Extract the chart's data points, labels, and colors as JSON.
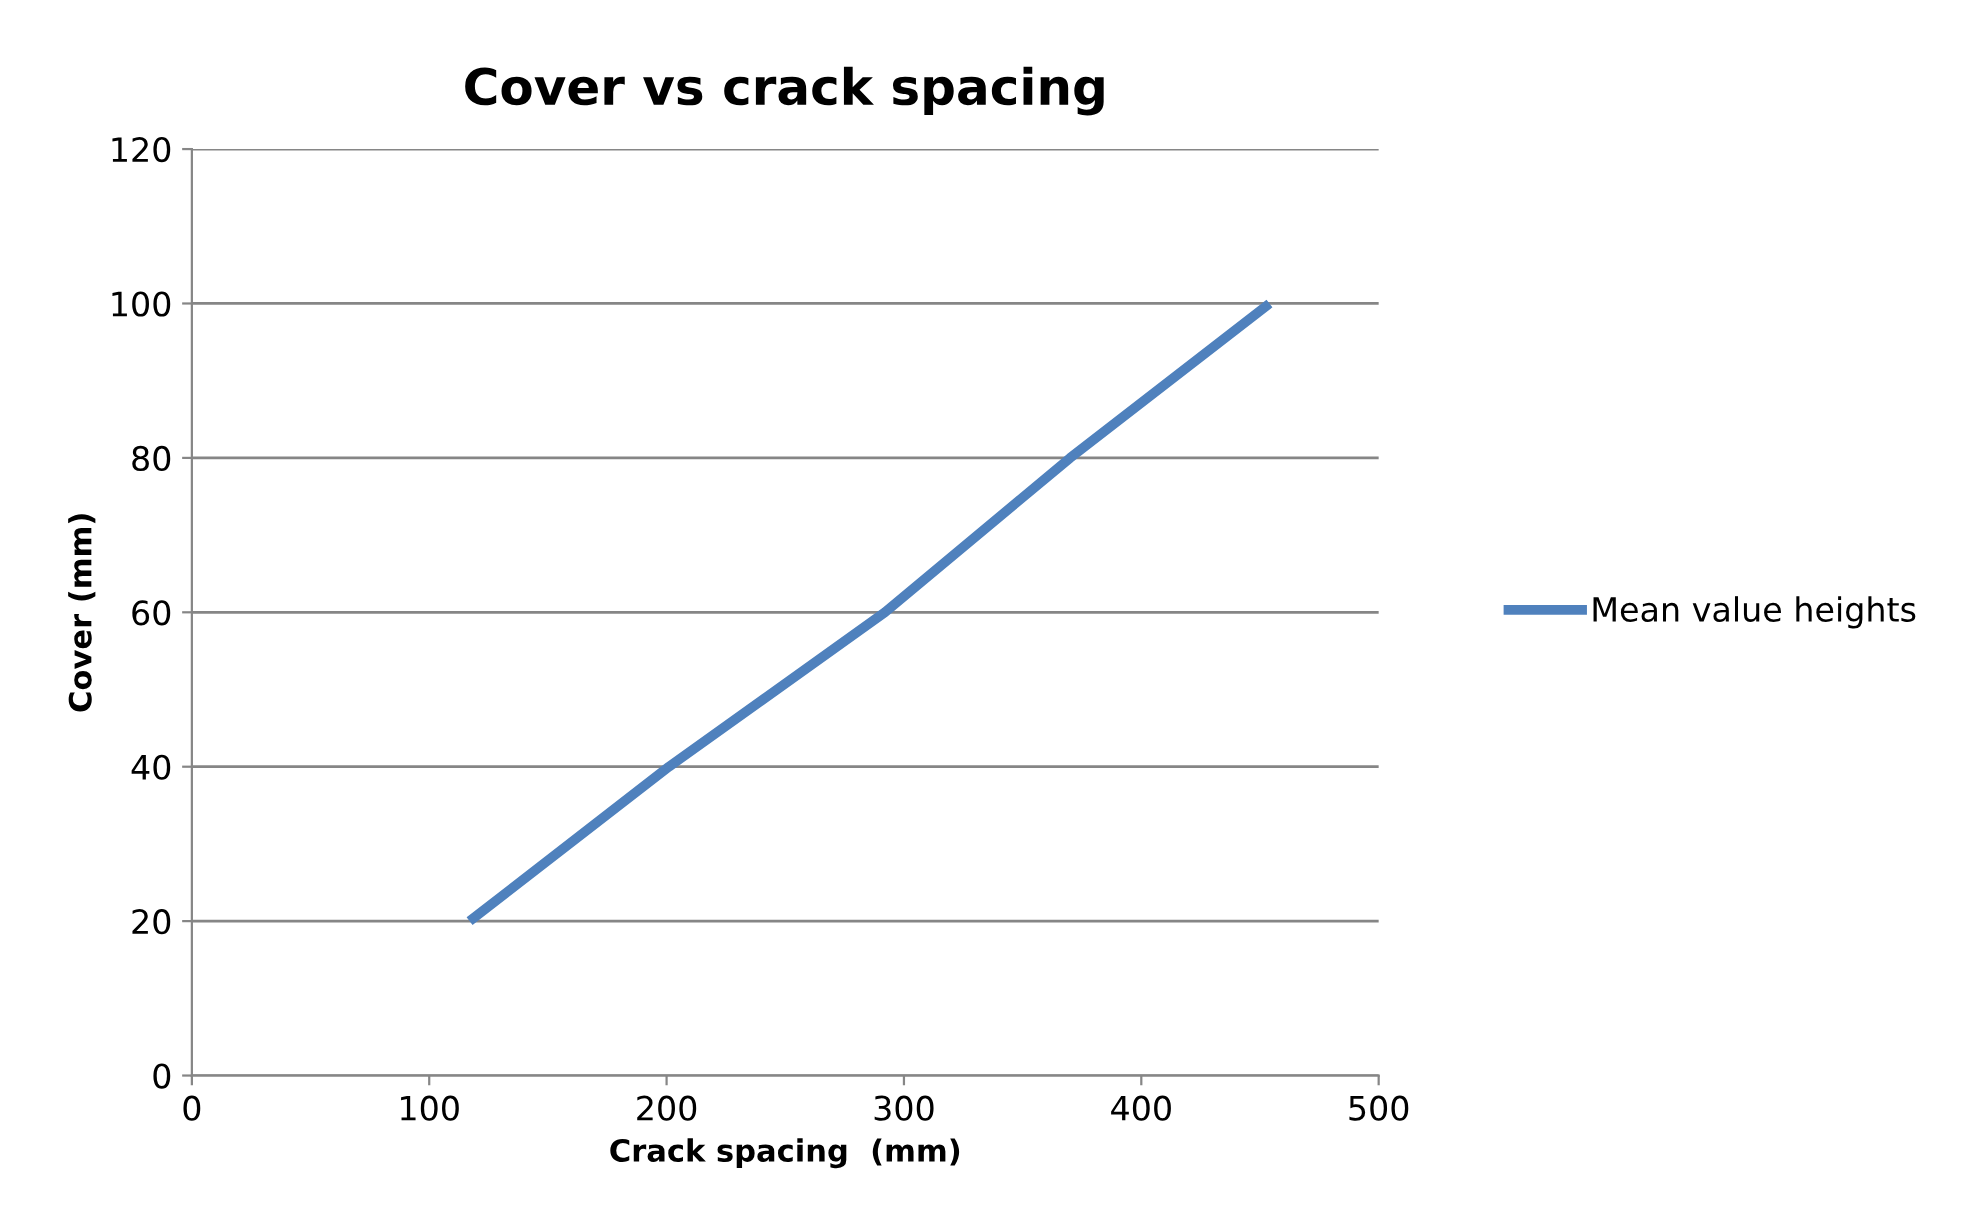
{
  "chart_data": {
    "type": "line",
    "title": "Cover vs crack spacing",
    "xlabel": "Crack spacing  (mm)",
    "ylabel": "Cover (mm)",
    "series": [
      {
        "name": "Mean value heights",
        "color": "#4f81bd",
        "x": [
          117,
          201,
          292,
          370,
          454
        ],
        "values": [
          20,
          40,
          60,
          80,
          100
        ]
      }
    ],
    "xlim": [
      0,
      500
    ],
    "xticks": [
      0,
      100,
      200,
      300,
      400,
      500
    ],
    "ylim": [
      0,
      120
    ],
    "yticks": [
      0,
      20,
      40,
      60,
      80,
      100,
      120
    ],
    "grid": "y",
    "legend": "right",
    "marker": "none",
    "line_style": "solid"
  }
}
